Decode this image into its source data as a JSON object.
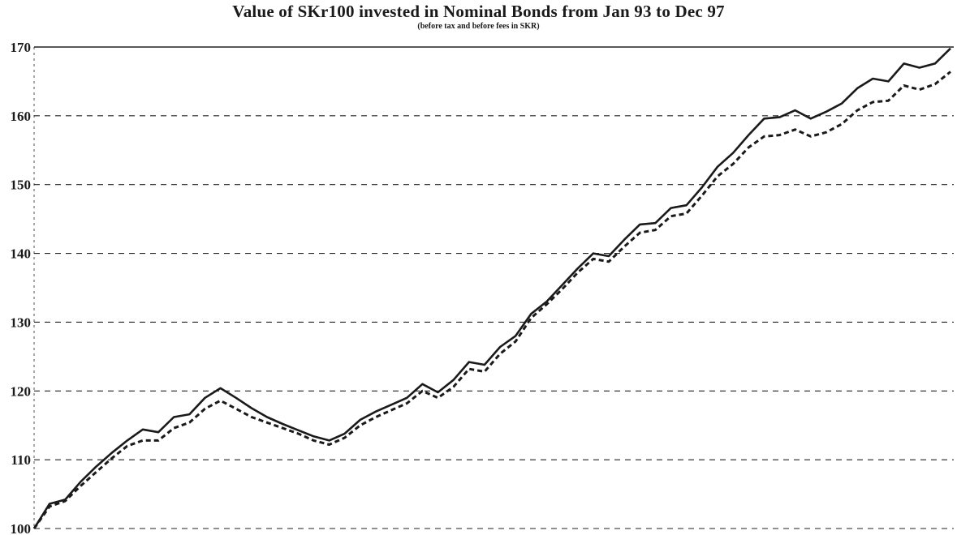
{
  "chart_data": {
    "type": "line",
    "title": "Value of SKr100 invested in Nominal Bonds from Jan 93 to Dec 97",
    "subtitle": "(before tax and before fees in SKR)",
    "xlabel": "",
    "ylabel": "",
    "ylim": [
      100,
      170
    ],
    "yticks": [
      100,
      110,
      120,
      130,
      140,
      150,
      160,
      170
    ],
    "grid": "horizontal-dashed",
    "legend": "none",
    "x_start": "Jan 93",
    "x_end": "Dec 97",
    "series": [
      {
        "style": "solid",
        "color": "#1a1a1a",
        "values": [
          100.0,
          103.6,
          104.2,
          106.8,
          109.0,
          111.0,
          112.8,
          114.4,
          114.0,
          116.2,
          116.6,
          119.0,
          120.4,
          119.0,
          117.5,
          116.2,
          115.2,
          114.3,
          113.4,
          112.8,
          113.8,
          115.8,
          117.0,
          118.0,
          119.0,
          121.0,
          119.8,
          121.6,
          124.2,
          123.8,
          126.4,
          128.0,
          131.2,
          133.0,
          135.4,
          137.8,
          140.0,
          139.6,
          142.0,
          144.2,
          144.4,
          146.6,
          147.0,
          149.6,
          152.6,
          154.6,
          157.2,
          159.6,
          159.8,
          160.8,
          159.6,
          160.6,
          161.8,
          164.0,
          165.4,
          165.0,
          167.6,
          167.0,
          167.6,
          169.8
        ]
      },
      {
        "style": "dashed",
        "color": "#1a1a1a",
        "values": [
          100.0,
          103.2,
          104.0,
          106.2,
          108.2,
          110.2,
          112.0,
          112.8,
          112.8,
          114.6,
          115.4,
          117.4,
          118.6,
          117.4,
          116.2,
          115.4,
          114.6,
          113.8,
          112.8,
          112.2,
          113.2,
          115.0,
          116.2,
          117.2,
          118.2,
          120.0,
          119.0,
          120.6,
          123.2,
          122.8,
          125.4,
          127.2,
          130.6,
          132.6,
          134.8,
          137.2,
          139.2,
          138.8,
          141.0,
          143.0,
          143.4,
          145.4,
          145.8,
          148.4,
          151.2,
          153.0,
          155.4,
          157.0,
          157.2,
          158.0,
          157.0,
          157.6,
          158.8,
          160.8,
          162.0,
          162.2,
          164.4,
          163.8,
          164.6,
          166.4
        ]
      }
    ]
  }
}
